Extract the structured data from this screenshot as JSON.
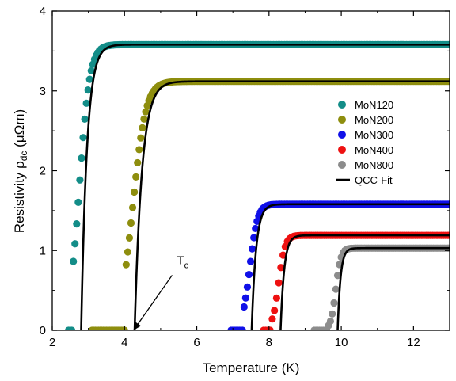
{
  "chart_data": {
    "type": "scatter",
    "xlabel": "Temperature (K)",
    "ylabel_main": "Resistivity ρ",
    "ylabel_sub": "dc",
    "ylabel_unit": " (μΩm)",
    "xlim": [
      2,
      13
    ],
    "ylim": [
      0,
      4
    ],
    "xticks": [
      "2",
      "4",
      "6",
      "8",
      "10",
      "12"
    ],
    "yticks": [
      "0",
      "1",
      "2",
      "3",
      "4"
    ],
    "grid": false,
    "legend_position": "right",
    "annotation": {
      "text_main": "T",
      "text_sub": "c",
      "points_to": {
        "x": 4.25,
        "y": 0.0
      },
      "label_at": {
        "x": 5.45,
        "y": 0.75
      }
    },
    "series": [
      {
        "name": "MoN120",
        "color": "#138d88",
        "tc": 2.8,
        "w": 0.16,
        "rn": 3.58,
        "step": 0.045,
        "onset": 2.45
      },
      {
        "name": "MoN200",
        "color": "#8e8e0e",
        "tc": 4.28,
        "w": 0.2,
        "rn": 3.12,
        "step": 0.045,
        "onset": 3.1
      },
      {
        "name": "MoN300",
        "color": "#1010e8",
        "tc": 7.52,
        "w": 0.12,
        "rn": 1.58,
        "step": 0.045,
        "onset": 6.95
      },
      {
        "name": "MoN400",
        "color": "#ee1111",
        "tc": 8.32,
        "w": 0.1,
        "rn": 1.19,
        "step": 0.06,
        "onset": 7.85
      },
      {
        "name": "MoN800",
        "color": "#8c8c8c",
        "tc": 9.9,
        "w": 0.08,
        "rn": 1.03,
        "step": 0.05,
        "onset": 9.25
      }
    ],
    "fit_legend": "QCC-Fit",
    "fit_color": "#000000"
  }
}
